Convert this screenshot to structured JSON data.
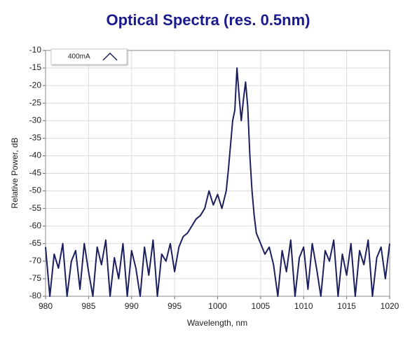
{
  "chart_data": {
    "type": "line",
    "title": "Optical Spectra (res. 0.5nm)",
    "x_label": "Wavelength, nm",
    "y_label": "Relative Power, dB",
    "xlim": [
      980,
      1020
    ],
    "xticks": [
      980,
      985,
      990,
      995,
      1000,
      1005,
      1010,
      1015,
      1020
    ],
    "ylim": [
      -80,
      -10
    ],
    "yticks": [
      -10,
      -15,
      -20,
      -25,
      -30,
      -35,
      -40,
      -45,
      -50,
      -55,
      -60,
      -65,
      -70,
      -75,
      -80
    ],
    "grid": true,
    "legend": "upper left",
    "x": [
      980,
      980.5,
      981,
      981.5,
      982,
      982.5,
      983,
      983.5,
      984,
      984.5,
      985,
      985.5,
      986,
      986.5,
      987,
      987.5,
      988,
      988.5,
      989,
      989.5,
      990,
      990.5,
      991,
      991.5,
      992,
      992.5,
      993,
      993.5,
      994,
      994.5,
      995,
      995.5,
      996,
      996.5,
      997,
      997.5,
      998,
      998.5,
      999,
      999.5,
      1000,
      1000.5,
      1001,
      1001.25,
      1001.5,
      1001.75,
      1002,
      1002.25,
      1002.5,
      1002.75,
      1003,
      1003.25,
      1003.5,
      1003.75,
      1004,
      1004.25,
      1004.5,
      1005,
      1005.5,
      1006,
      1006.5,
      1007,
      1007.5,
      1008,
      1008.5,
      1009,
      1009.5,
      1010,
      1010.5,
      1011,
      1011.5,
      1012,
      1012.5,
      1013,
      1013.5,
      1014,
      1014.5,
      1015,
      1015.5,
      1016,
      1016.5,
      1017,
      1017.5,
      1018,
      1018.5,
      1019,
      1019.5,
      1020
    ],
    "series": [
      {
        "name": "400mA",
        "color": "#1b1f5e",
        "values": [
          -66,
          -80,
          -68,
          -72,
          -65,
          -80,
          -70,
          -67,
          -78,
          -65,
          -73,
          -80,
          -66,
          -71,
          -64,
          -80,
          -69,
          -75,
          -65,
          -80,
          -67,
          -72,
          -80,
          -66,
          -74,
          -64,
          -80,
          -68,
          -70,
          -65,
          -73,
          -66,
          -63,
          -62,
          -60,
          -58,
          -57,
          -55,
          -50,
          -54,
          -51,
          -55,
          -50,
          -44,
          -37,
          -30,
          -27,
          -15,
          -23,
          -30,
          -24,
          -19,
          -26,
          -40,
          -50,
          -57,
          -62,
          -65,
          -68,
          -66,
          -71,
          -80,
          -67,
          -73,
          -64,
          -80,
          -69,
          -66,
          -78,
          -65,
          -72,
          -80,
          -67,
          -70,
          -64,
          -80,
          -68,
          -74,
          -65,
          -80,
          -67,
          -71,
          -64,
          -80,
          -69,
          -66,
          -75,
          -65
        ]
      }
    ]
  }
}
